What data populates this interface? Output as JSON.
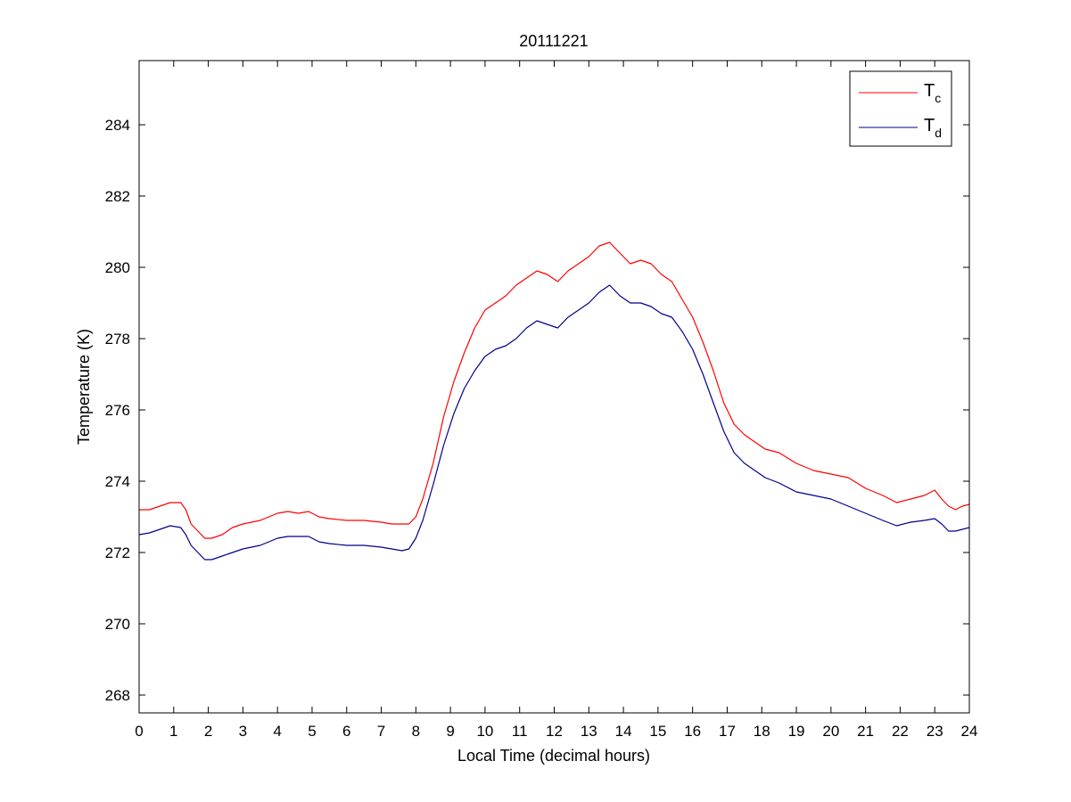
{
  "chart_data": {
    "type": "line",
    "title": "20111221",
    "xlabel": "Local Time (decimal hours)",
    "ylabel": "Temperature (K)",
    "xlim": [
      0,
      24
    ],
    "ylim": [
      267.5,
      285.8
    ],
    "xticks": [
      0,
      1,
      2,
      3,
      4,
      5,
      6,
      7,
      8,
      9,
      10,
      11,
      12,
      13,
      14,
      15,
      16,
      17,
      18,
      19,
      20,
      21,
      22,
      23,
      24
    ],
    "yticks": [
      268,
      270,
      272,
      274,
      276,
      278,
      280,
      282,
      284
    ],
    "grid": false,
    "legend_position": "top-right",
    "series": [
      {
        "name": "T",
        "subscript": "c",
        "color": "#ff0000",
        "x": [
          0,
          0.3,
          0.6,
          0.9,
          1.2,
          1.35,
          1.5,
          1.7,
          1.9,
          2.1,
          2.4,
          2.7,
          3.0,
          3.5,
          4.0,
          4.3,
          4.6,
          4.9,
          5.2,
          5.5,
          6.0,
          6.5,
          7.0,
          7.3,
          7.6,
          7.8,
          8.0,
          8.2,
          8.5,
          8.8,
          9.1,
          9.4,
          9.7,
          10.0,
          10.3,
          10.6,
          10.9,
          11.2,
          11.5,
          11.8,
          12.1,
          12.4,
          12.7,
          13.0,
          13.3,
          13.6,
          13.9,
          14.2,
          14.5,
          14.8,
          15.1,
          15.4,
          15.7,
          16.0,
          16.3,
          16.6,
          16.9,
          17.2,
          17.5,
          17.8,
          18.1,
          18.5,
          19.0,
          19.5,
          20.0,
          20.5,
          21.0,
          21.5,
          21.9,
          22.3,
          22.7,
          23.0,
          23.2,
          23.4,
          23.6,
          23.8,
          24.0
        ],
        "y": [
          273.2,
          273.2,
          273.3,
          273.4,
          273.4,
          273.2,
          272.8,
          272.6,
          272.4,
          272.4,
          272.5,
          272.7,
          272.8,
          272.9,
          273.1,
          273.15,
          273.1,
          273.15,
          273.0,
          272.95,
          272.9,
          272.9,
          272.85,
          272.8,
          272.8,
          272.8,
          273.0,
          273.5,
          274.5,
          275.8,
          276.8,
          277.6,
          278.3,
          278.8,
          279.0,
          279.2,
          279.5,
          279.7,
          279.9,
          279.8,
          279.6,
          279.9,
          280.1,
          280.3,
          280.6,
          280.7,
          280.4,
          280.1,
          280.2,
          280.1,
          279.8,
          279.6,
          279.1,
          278.6,
          277.9,
          277.1,
          276.2,
          275.6,
          275.3,
          275.1,
          274.9,
          274.8,
          274.5,
          274.3,
          274.2,
          274.1,
          273.8,
          273.6,
          273.4,
          273.5,
          273.6,
          273.75,
          273.5,
          273.3,
          273.2,
          273.3,
          273.35
        ]
      },
      {
        "name": "T",
        "subscript": "d",
        "color": "#00008b",
        "x": [
          0,
          0.3,
          0.6,
          0.9,
          1.2,
          1.35,
          1.5,
          1.7,
          1.9,
          2.1,
          2.4,
          2.7,
          3.0,
          3.5,
          4.0,
          4.3,
          4.6,
          4.9,
          5.2,
          5.5,
          6.0,
          6.5,
          7.0,
          7.3,
          7.6,
          7.8,
          8.0,
          8.2,
          8.5,
          8.8,
          9.1,
          9.4,
          9.7,
          10.0,
          10.3,
          10.6,
          10.9,
          11.2,
          11.5,
          11.8,
          12.1,
          12.4,
          12.7,
          13.0,
          13.3,
          13.6,
          13.9,
          14.2,
          14.5,
          14.8,
          15.1,
          15.4,
          15.7,
          16.0,
          16.3,
          16.6,
          16.9,
          17.2,
          17.5,
          17.8,
          18.1,
          18.5,
          19.0,
          19.5,
          20.0,
          20.5,
          21.0,
          21.5,
          21.9,
          22.3,
          22.7,
          23.0,
          23.2,
          23.4,
          23.6,
          23.8,
          24.0
        ],
        "y": [
          272.5,
          272.55,
          272.65,
          272.75,
          272.7,
          272.5,
          272.2,
          272.0,
          271.8,
          271.8,
          271.9,
          272.0,
          272.1,
          272.2,
          272.4,
          272.45,
          272.45,
          272.45,
          272.3,
          272.25,
          272.2,
          272.2,
          272.15,
          272.1,
          272.05,
          272.1,
          272.4,
          272.9,
          273.9,
          275.0,
          275.9,
          276.6,
          277.1,
          277.5,
          277.7,
          277.8,
          278.0,
          278.3,
          278.5,
          278.4,
          278.3,
          278.6,
          278.8,
          279.0,
          279.3,
          279.5,
          279.2,
          279.0,
          279.0,
          278.9,
          278.7,
          278.6,
          278.2,
          277.7,
          277.0,
          276.2,
          275.4,
          274.8,
          274.5,
          274.3,
          274.1,
          273.95,
          273.7,
          273.6,
          273.5,
          273.3,
          273.1,
          272.9,
          272.75,
          272.85,
          272.9,
          272.95,
          272.8,
          272.6,
          272.6,
          272.65,
          272.7
        ]
      }
    ]
  }
}
